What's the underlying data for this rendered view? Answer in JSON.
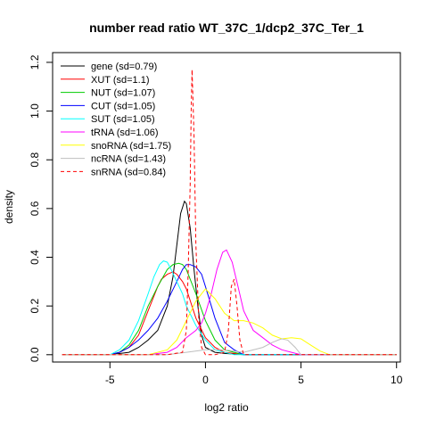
{
  "chart_data": {
    "type": "line",
    "title": "number read ratio WT_37C_1/dcp2_37C_Ter_1",
    "xlabel": "log2 ratio",
    "ylabel": "density",
    "xlim": [
      -8,
      10.2
    ],
    "ylim": [
      -0.03,
      1.24
    ],
    "x_ticks": [
      -5,
      0,
      5,
      10
    ],
    "y_ticks": [
      0.0,
      0.2,
      0.4,
      0.6,
      0.8,
      1.0,
      1.2
    ],
    "x_tick_labels": [
      "-5",
      "0",
      "5",
      "10"
    ],
    "y_tick_labels": [
      "0.0",
      "0.2",
      "0.4",
      "0.6",
      "0.8",
      "1.0",
      "1.2"
    ],
    "grid": false,
    "legend_position": "top-left",
    "series": [
      {
        "name": "gene (sd=0.79)",
        "color": "#000000",
        "dash": "solid",
        "x": [
          -7.5,
          -5,
          -4,
          -3.5,
          -3,
          -2.5,
          -2,
          -1.7,
          -1.5,
          -1.3,
          -1.1,
          -1.0,
          -0.8,
          -0.6,
          -0.4,
          -0.2,
          0,
          0.5,
          1,
          2,
          10
        ],
        "y": [
          0,
          0,
          0.01,
          0.03,
          0.06,
          0.1,
          0.2,
          0.32,
          0.45,
          0.58,
          0.63,
          0.62,
          0.52,
          0.35,
          0.2,
          0.08,
          0.03,
          0.01,
          0.005,
          0,
          0
        ]
      },
      {
        "name": "XUT (sd=1.1)",
        "color": "#ff0000",
        "dash": "solid",
        "x": [
          -7.5,
          -5,
          -4.5,
          -4,
          -3.5,
          -3,
          -2.5,
          -2.3,
          -2,
          -1.7,
          -1.5,
          -1.2,
          -1,
          -0.5,
          0,
          0.5,
          1,
          1.5,
          2,
          10
        ],
        "y": [
          0,
          0,
          0.01,
          0.03,
          0.08,
          0.18,
          0.28,
          0.31,
          0.33,
          0.34,
          0.33,
          0.3,
          0.27,
          0.15,
          0.07,
          0.03,
          0.01,
          0.005,
          0,
          0
        ]
      },
      {
        "name": "NUT (sd=1.07)",
        "color": "#00cc00",
        "dash": "solid",
        "x": [
          -7.5,
          -5,
          -4.5,
          -4,
          -3.5,
          -3,
          -2.5,
          -2,
          -1.7,
          -1.4,
          -1.2,
          -1,
          -0.5,
          0,
          0.5,
          1,
          1.5,
          2,
          10
        ],
        "y": [
          0,
          0,
          0.01,
          0.04,
          0.1,
          0.2,
          0.28,
          0.35,
          0.37,
          0.375,
          0.37,
          0.35,
          0.25,
          0.14,
          0.06,
          0.02,
          0.01,
          0,
          0
        ]
      },
      {
        "name": "CUT (sd=1.05)",
        "color": "#0000ff",
        "dash": "solid",
        "x": [
          -7.5,
          -5,
          -4.5,
          -4,
          -3.5,
          -3,
          -2.5,
          -2,
          -1.5,
          -1.2,
          -1,
          -0.8,
          -0.5,
          -0.2,
          0,
          0.5,
          1,
          1.5,
          2,
          10
        ],
        "y": [
          0,
          0,
          0.01,
          0.03,
          0.06,
          0.1,
          0.15,
          0.22,
          0.3,
          0.35,
          0.37,
          0.37,
          0.36,
          0.33,
          0.28,
          0.15,
          0.05,
          0.02,
          0,
          0
        ]
      },
      {
        "name": "SUT (sd=1.05)",
        "color": "#00ffff",
        "dash": "solid",
        "x": [
          -7.5,
          -5,
          -4.5,
          -4,
          -3.5,
          -3,
          -2.7,
          -2.4,
          -2.2,
          -2,
          -1.8,
          -1.5,
          -1.2,
          -1,
          -0.5,
          0,
          0.5,
          1,
          1.5,
          10
        ],
        "y": [
          0,
          0,
          0.02,
          0.06,
          0.14,
          0.25,
          0.32,
          0.37,
          0.385,
          0.38,
          0.35,
          0.3,
          0.25,
          0.2,
          0.12,
          0.06,
          0.02,
          0.01,
          0,
          0
        ]
      },
      {
        "name": "tRNA (sd=1.06)",
        "color": "#ff00ff",
        "dash": "solid",
        "x": [
          -7.5,
          -3,
          -2,
          -1.5,
          -1,
          -0.5,
          -0.2,
          0,
          0.3,
          0.6,
          0.9,
          1.1,
          1.4,
          1.7,
          2,
          2.5,
          3,
          3.5,
          4,
          4.5,
          5,
          10
        ],
        "y": [
          0,
          0,
          0.01,
          0.03,
          0.07,
          0.1,
          0.13,
          0.17,
          0.25,
          0.35,
          0.42,
          0.43,
          0.38,
          0.28,
          0.18,
          0.1,
          0.07,
          0.04,
          0.02,
          0.01,
          0,
          0
        ]
      },
      {
        "name": "snoRNA (sd=1.75)",
        "color": "#ffff00",
        "dash": "solid",
        "x": [
          -7.5,
          -3,
          -2,
          -1.5,
          -1,
          -0.5,
          0,
          0.5,
          1,
          1.5,
          2,
          2.5,
          3,
          3.5,
          4,
          4.5,
          5,
          5.5,
          6,
          6.5,
          10
        ],
        "y": [
          0,
          0,
          0.02,
          0.06,
          0.14,
          0.22,
          0.27,
          0.23,
          0.17,
          0.14,
          0.14,
          0.13,
          0.11,
          0.08,
          0.065,
          0.07,
          0.065,
          0.04,
          0.015,
          0,
          0
        ]
      },
      {
        "name": "ncRNA (sd=1.43)",
        "color": "#bebebe",
        "dash": "solid",
        "x": [
          -7.5,
          -2,
          -1,
          0,
          1,
          2,
          3,
          3.5,
          3.8,
          4,
          4.3,
          4.7,
          5,
          10
        ],
        "y": [
          0,
          0,
          0.01,
          0.02,
          0.02,
          0.01,
          0.03,
          0.05,
          0.06,
          0.065,
          0.06,
          0.03,
          0,
          0
        ]
      },
      {
        "name": "snRNA (sd=0.84)",
        "color": "#ff0000",
        "dash": "dashed",
        "x": [
          -7.5,
          -2,
          -1.2,
          -1.0,
          -0.9,
          -0.8,
          -0.75,
          -0.7,
          -0.6,
          -0.5,
          -0.35,
          -0.2,
          0,
          0.5,
          1,
          1.2,
          1.35,
          1.5,
          1.65,
          1.8,
          2,
          10
        ],
        "y": [
          0,
          0,
          0.01,
          0.1,
          0.35,
          0.7,
          1.0,
          1.17,
          0.9,
          0.45,
          0.15,
          0.03,
          0,
          0,
          0.01,
          0.1,
          0.28,
          0.31,
          0.2,
          0.06,
          0,
          0
        ]
      }
    ]
  }
}
